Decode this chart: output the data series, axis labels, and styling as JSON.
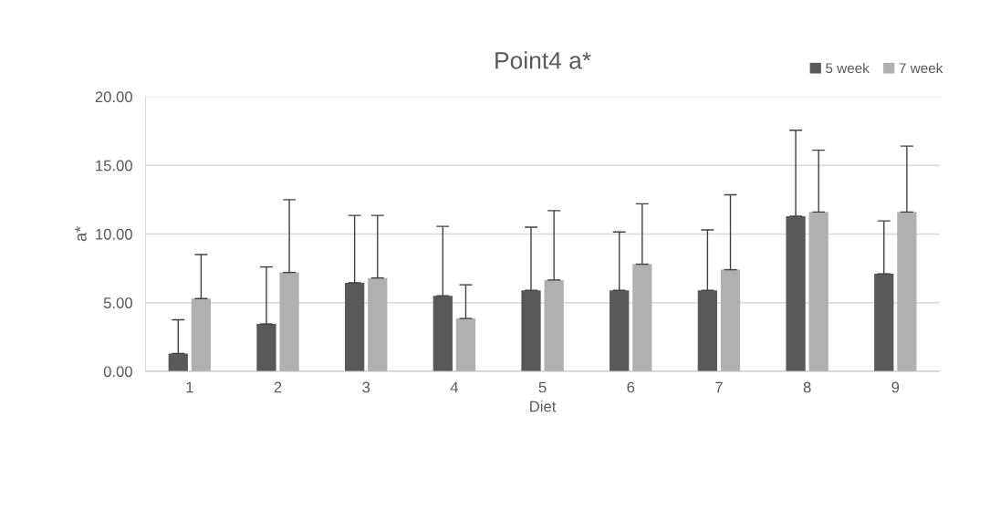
{
  "chart_data": {
    "type": "bar",
    "title": "Point4 a*",
    "xlabel": "Diet",
    "ylabel": "a*",
    "categories": [
      "1",
      "2",
      "3",
      "4",
      "5",
      "6",
      "7",
      "8",
      "9"
    ],
    "series": [
      {
        "name": "5 week",
        "color": "#595959",
        "values": [
          1.3,
          3.45,
          6.45,
          5.5,
          5.9,
          5.9,
          5.9,
          11.3,
          7.1
        ],
        "errors": [
          [
            1.3,
            3.75
          ],
          [
            3.45,
            7.6
          ],
          [
            6.45,
            11.35
          ],
          [
            5.5,
            10.55
          ],
          [
            5.9,
            10.5
          ],
          [
            5.9,
            10.15
          ],
          [
            5.9,
            10.3
          ],
          [
            11.3,
            17.55
          ],
          [
            7.1,
            10.95
          ]
        ]
      },
      {
        "name": "7 week",
        "color": "#b0b0b0",
        "values": [
          5.3,
          7.2,
          6.8,
          3.85,
          6.65,
          7.8,
          7.4,
          11.6,
          11.6
        ],
        "errors": [
          [
            5.3,
            8.5
          ],
          [
            7.2,
            12.5
          ],
          [
            6.8,
            11.35
          ],
          [
            3.85,
            6.3
          ],
          [
            6.65,
            11.7
          ],
          [
            7.8,
            12.2
          ],
          [
            7.4,
            12.85
          ],
          [
            11.6,
            16.1
          ],
          [
            11.6,
            16.4
          ]
        ]
      }
    ],
    "ylim": [
      0,
      20
    ],
    "yticks": [
      {
        "value": 0,
        "label": "0.00"
      },
      {
        "value": 5,
        "label": "5.00"
      },
      {
        "value": 10,
        "label": "10.00"
      },
      {
        "value": 15,
        "label": "15.00"
      },
      {
        "value": 20,
        "label": "20.00"
      }
    ],
    "grid": "y",
    "legend": "top right"
  }
}
